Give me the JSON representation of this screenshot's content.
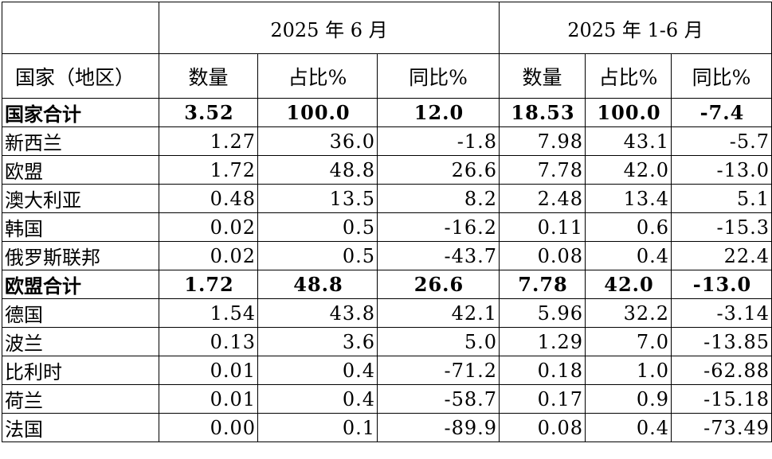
{
  "table": {
    "period_current": "2025 年 6 月",
    "period_ytd": "2025 年 1-6 月",
    "headers": {
      "country": "国家（地区）",
      "quantity": "数量",
      "share": "占比%",
      "yoy": "同比%",
      "quantity_ytd": "数量",
      "share_ytd": "占比%",
      "yoy_ytd": "同比%"
    },
    "rows": [
      {
        "name": "国家合计",
        "q": "3.52",
        "s": "100.0",
        "y": "12.0",
        "q2": "18.53",
        "s2": "100.0",
        "y2": "-7.4",
        "bold": true
      },
      {
        "name": "新西兰",
        "q": "1.27",
        "s": "36.0",
        "y": "-1.8",
        "q2": "7.98",
        "s2": "43.1",
        "y2": "-5.7"
      },
      {
        "name": "欧盟",
        "q": "1.72",
        "s": "48.8",
        "y": "26.6",
        "q2": "7.78",
        "s2": "42.0",
        "y2": "-13.0"
      },
      {
        "name": "澳大利亚",
        "q": "0.48",
        "s": "13.5",
        "y": "8.2",
        "q2": "2.48",
        "s2": "13.4",
        "y2": "5.1"
      },
      {
        "name": "韩国",
        "q": "0.02",
        "s": "0.5",
        "y": "-16.2",
        "q2": "0.11",
        "s2": "0.6",
        "y2": "-15.3"
      },
      {
        "name": "俄罗斯联邦",
        "q": "0.02",
        "s": "0.5",
        "y": "-43.7",
        "q2": "0.08",
        "s2": "0.4",
        "y2": "22.4"
      },
      {
        "name": "欧盟合计",
        "q": "1.72",
        "s": "48.8",
        "y": "26.6",
        "q2": "7.78",
        "s2": "42.0",
        "y2": "-13.0",
        "bold": true
      },
      {
        "name": "德国",
        "q": "1.54",
        "s": "43.8",
        "y": "42.1",
        "q2": "5.96",
        "s2": "32.2",
        "y2": "-3.14"
      },
      {
        "name": "波兰",
        "q": "0.13",
        "s": "3.6",
        "y": "5.0",
        "q2": "1.29",
        "s2": "7.0",
        "y2": "-13.85"
      },
      {
        "name": "比利时",
        "q": "0.01",
        "s": "0.4",
        "y": "-71.2",
        "q2": "0.18",
        "s2": "1.0",
        "y2": "-62.88"
      },
      {
        "name": "荷兰",
        "q": "0.01",
        "s": "0.4",
        "y": "-58.7",
        "q2": "0.17",
        "s2": "0.9",
        "y2": "-15.18"
      },
      {
        "name": "法国",
        "q": "0.00",
        "s": "0.1",
        "y": "-89.9",
        "q2": "0.08",
        "s2": "0.4",
        "y2": "-73.49"
      }
    ]
  }
}
